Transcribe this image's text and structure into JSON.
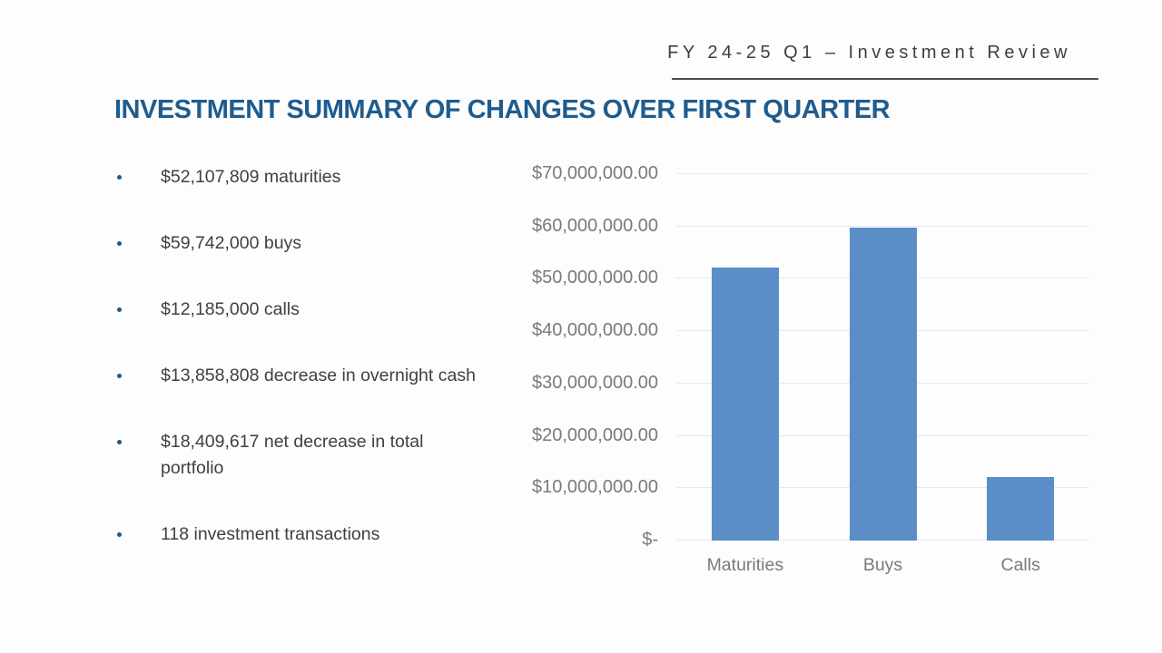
{
  "slide": {
    "header": "FY 24-25 Q1 – Investment Review",
    "title": "INVESTMENT SUMMARY OF CHANGES OVER FIRST QUARTER",
    "bullets": [
      "$52,107,809 maturities",
      "$59,742,000 buys",
      "$12,185,000 calls",
      "$13,858,808 decrease in overnight cash",
      "$18,409,617 net decrease in total portfolio",
      "118 investment transactions"
    ]
  },
  "chart_data": {
    "type": "bar",
    "categories": [
      "Maturities",
      "Buys",
      "Calls"
    ],
    "values": [
      52107809,
      59742000,
      12185000
    ],
    "title": "",
    "xlabel": "",
    "ylabel": "",
    "ylim": [
      0,
      70000000
    ],
    "y_tick_step": 10000000,
    "y_tick_labels": [
      "$-",
      "$10,000,000.00",
      "$20,000,000.00",
      "$30,000,000.00",
      "$40,000,000.00",
      "$50,000,000.00",
      "$60,000,000.00",
      "$70,000,000.00"
    ],
    "grid": true,
    "legend": false,
    "bar_color": "#5B8EC6"
  },
  "colors": {
    "title_blue": "#1F5C8E",
    "header_gray": "#3F3F3F",
    "body_text": "#404040",
    "bullet_dot": "#27567F",
    "bar_blue": "#5B8EC6",
    "gridline": "#E9E9E9",
    "axis_label": "#7A7A7A"
  }
}
